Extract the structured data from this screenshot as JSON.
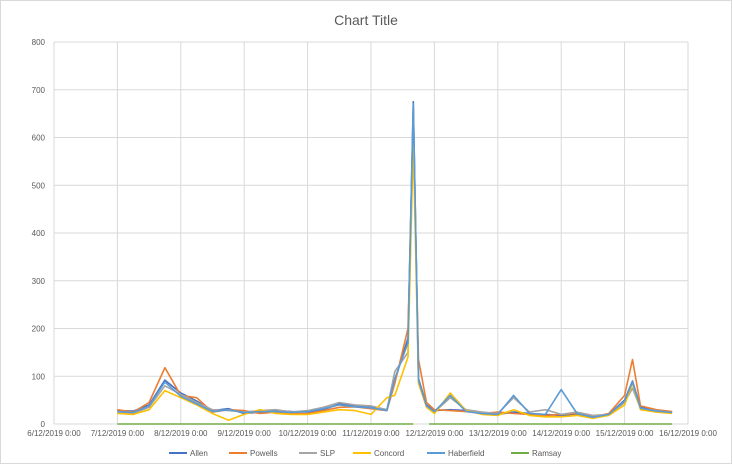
{
  "chart_data": {
    "type": "line",
    "title": "Chart Title",
    "xlabel": "",
    "ylabel": "",
    "ylim": [
      0,
      800
    ],
    "yticks": [
      0,
      100,
      200,
      300,
      400,
      500,
      600,
      700,
      800
    ],
    "xlim": [
      "6/12/2019 0:00",
      "16/12/2019 0:00"
    ],
    "x_tick_labels": [
      "6/12/2019 0:00",
      "7/12/2019 0:00",
      "8/12/2019 0:00",
      "9/12/2019 0:00",
      "10/12/2019 0:00",
      "11/12/2019 0:00",
      "12/12/2019 0:00",
      "13/12/2019 0:00",
      "14/12/2019 0:00",
      "15/12/2019 0:00",
      "16/12/2019 0:00"
    ],
    "grid": "vertical and horizontal",
    "legend_position": "bottom",
    "x_unit": "days",
    "series": [
      {
        "name": "Allen",
        "color": "#4472c4",
        "points": [
          [
            "7/12/2019 0:00",
            28
          ],
          [
            "7/12/2019 6:00",
            27
          ],
          [
            "7/12/2019 12:00",
            40
          ],
          [
            "7/12/2019 18:00",
            92
          ],
          [
            "8/12/2019 0:00",
            65
          ],
          [
            "8/12/2019 6:00",
            48
          ],
          [
            "8/12/2019 12:00",
            28
          ],
          [
            "8/12/2019 18:00",
            32
          ],
          [
            "9/12/2019 0:00",
            22
          ],
          [
            "9/12/2019 6:00",
            25
          ],
          [
            "9/12/2019 12:00",
            28
          ],
          [
            "9/12/2019 18:00",
            26
          ],
          [
            "10/12/2019 0:00",
            25
          ],
          [
            "10/12/2019 6:00",
            30
          ],
          [
            "10/12/2019 12:00",
            42
          ],
          [
            "10/12/2019 18:00",
            38
          ],
          [
            "11/12/2019 0:00",
            35
          ],
          [
            "11/12/2019 6:00",
            30
          ],
          [
            "11/12/2019 9:00",
            90
          ],
          [
            "11/12/2019 14:00",
            180
          ],
          [
            "11/12/2019 16:00",
            675
          ],
          [
            "11/12/2019 18:00",
            95
          ],
          [
            "11/12/2019 21:00",
            40
          ],
          [
            "12/12/2019 0:00",
            28
          ],
          [
            "12/12/2019 6:00",
            30
          ],
          [
            "12/12/2019 12:00",
            28
          ],
          [
            "12/12/2019 18:00",
            22
          ],
          [
            "13/12/2019 0:00",
            20
          ],
          [
            "13/12/2019 6:00",
            25
          ],
          [
            "13/12/2019 12:00",
            22
          ],
          [
            "13/12/2019 18:00",
            20
          ],
          [
            "14/12/2019 0:00",
            18
          ],
          [
            "14/12/2019 6:00",
            20
          ],
          [
            "14/12/2019 12:00",
            15
          ],
          [
            "14/12/2019 18:00",
            20
          ],
          [
            "15/12/2019 0:00",
            50
          ],
          [
            "15/12/2019 3:00",
            90
          ],
          [
            "15/12/2019 6:00",
            35
          ],
          [
            "15/12/2019 12:00",
            28
          ],
          [
            "15/12/2019 18:00",
            25
          ]
        ]
      },
      {
        "name": "Powells",
        "color": "#ed7d31",
        "points": [
          [
            "7/12/2019 0:00",
            30
          ],
          [
            "7/12/2019 6:00",
            25
          ],
          [
            "7/12/2019 12:00",
            45
          ],
          [
            "7/12/2019 18:00",
            118
          ],
          [
            "8/12/2019 0:00",
            60
          ],
          [
            "8/12/2019 6:00",
            55
          ],
          [
            "8/12/2019 12:00",
            25
          ],
          [
            "8/12/2019 18:00",
            30
          ],
          [
            "9/12/2019 0:00",
            28
          ],
          [
            "9/12/2019 6:00",
            22
          ],
          [
            "9/12/2019 12:00",
            25
          ],
          [
            "9/12/2019 18:00",
            22
          ],
          [
            "10/12/2019 0:00",
            22
          ],
          [
            "10/12/2019 6:00",
            28
          ],
          [
            "10/12/2019 12:00",
            35
          ],
          [
            "10/12/2019 18:00",
            36
          ],
          [
            "11/12/2019 0:00",
            32
          ],
          [
            "11/12/2019 6:00",
            28
          ],
          [
            "11/12/2019 9:00",
            85
          ],
          [
            "11/12/2019 14:00",
            200
          ],
          [
            "11/12/2019 16:00",
            620
          ],
          [
            "11/12/2019 18:00",
            135
          ],
          [
            "11/12/2019 21:00",
            45
          ],
          [
            "12/12/2019 0:00",
            30
          ],
          [
            "12/12/2019 6:00",
            28
          ],
          [
            "12/12/2019 12:00",
            26
          ],
          [
            "12/12/2019 18:00",
            22
          ],
          [
            "13/12/2019 0:00",
            25
          ],
          [
            "13/12/2019 6:00",
            22
          ],
          [
            "13/12/2019 12:00",
            20
          ],
          [
            "13/12/2019 18:00",
            18
          ],
          [
            "14/12/2019 0:00",
            20
          ],
          [
            "14/12/2019 6:00",
            22
          ],
          [
            "14/12/2019 12:00",
            15
          ],
          [
            "14/12/2019 18:00",
            22
          ],
          [
            "15/12/2019 0:00",
            60
          ],
          [
            "15/12/2019 3:00",
            135
          ],
          [
            "15/12/2019 6:00",
            38
          ],
          [
            "15/12/2019 12:00",
            30
          ],
          [
            "15/12/2019 18:00",
            26
          ]
        ]
      },
      {
        "name": "SLP",
        "color": "#a5a5a5",
        "points": [
          [
            "7/12/2019 0:00",
            25
          ],
          [
            "7/12/2019 6:00",
            22
          ],
          [
            "7/12/2019 12:00",
            35
          ],
          [
            "7/12/2019 18:00",
            80
          ],
          [
            "8/12/2019 0:00",
            62
          ],
          [
            "8/12/2019 6:00",
            45
          ],
          [
            "8/12/2019 12:00",
            30
          ],
          [
            "8/12/2019 18:00",
            28
          ],
          [
            "9/12/2019 0:00",
            25
          ],
          [
            "9/12/2019 6:00",
            28
          ],
          [
            "9/12/2019 12:00",
            30
          ],
          [
            "9/12/2019 18:00",
            25
          ],
          [
            "10/12/2019 0:00",
            28
          ],
          [
            "10/12/2019 6:00",
            35
          ],
          [
            "10/12/2019 12:00",
            45
          ],
          [
            "10/12/2019 18:00",
            40
          ],
          [
            "11/12/2019 0:00",
            38
          ],
          [
            "11/12/2019 6:00",
            30
          ],
          [
            "11/12/2019 9:00",
            110
          ],
          [
            "11/12/2019 14:00",
            150
          ],
          [
            "11/12/2019 16:00",
            660
          ],
          [
            "11/12/2019 18:00",
            90
          ],
          [
            "11/12/2019 21:00",
            38
          ],
          [
            "12/12/2019 0:00",
            25
          ],
          [
            "12/12/2019 6:00",
            55
          ],
          [
            "12/12/2019 12:00",
            30
          ],
          [
            "12/12/2019 18:00",
            25
          ],
          [
            "13/12/2019 0:00",
            22
          ],
          [
            "13/12/2019 6:00",
            55
          ],
          [
            "13/12/2019 12:00",
            25
          ],
          [
            "13/12/2019 18:00",
            30
          ],
          [
            "14/12/2019 0:00",
            20
          ],
          [
            "14/12/2019 6:00",
            25
          ],
          [
            "14/12/2019 12:00",
            18
          ],
          [
            "14/12/2019 18:00",
            20
          ],
          [
            "15/12/2019 0:00",
            45
          ],
          [
            "15/12/2019 3:00",
            75
          ],
          [
            "15/12/2019 6:00",
            32
          ],
          [
            "15/12/2019 12:00",
            28
          ],
          [
            "15/12/2019 18:00",
            24
          ]
        ]
      },
      {
        "name": "Concord",
        "color": "#ffc000",
        "points": [
          [
            "7/12/2019 0:00",
            22
          ],
          [
            "7/12/2019 6:00",
            20
          ],
          [
            "7/12/2019 12:00",
            30
          ],
          [
            "7/12/2019 18:00",
            70
          ],
          [
            "8/12/2019 0:00",
            55
          ],
          [
            "8/12/2019 6:00",
            40
          ],
          [
            "8/12/2019 12:00",
            22
          ],
          [
            "8/12/2019 18:00",
            8
          ],
          [
            "9/12/2019 0:00",
            20
          ],
          [
            "9/12/2019 6:00",
            30
          ],
          [
            "9/12/2019 12:00",
            22
          ],
          [
            "9/12/2019 18:00",
            20
          ],
          [
            "10/12/2019 0:00",
            20
          ],
          [
            "10/12/2019 6:00",
            25
          ],
          [
            "10/12/2019 12:00",
            30
          ],
          [
            "10/12/2019 18:00",
            28
          ],
          [
            "11/12/2019 0:00",
            20
          ],
          [
            "11/12/2019 6:00",
            55
          ],
          [
            "11/12/2019 9:00",
            60
          ],
          [
            "11/12/2019 14:00",
            140
          ],
          [
            "11/12/2019 16:00",
            590
          ],
          [
            "11/12/2019 18:00",
            85
          ],
          [
            "11/12/2019 21:00",
            35
          ],
          [
            "12/12/2019 0:00",
            22
          ],
          [
            "12/12/2019 6:00",
            65
          ],
          [
            "12/12/2019 12:00",
            28
          ],
          [
            "12/12/2019 18:00",
            20
          ],
          [
            "13/12/2019 0:00",
            18
          ],
          [
            "13/12/2019 6:00",
            30
          ],
          [
            "13/12/2019 12:00",
            18
          ],
          [
            "13/12/2019 18:00",
            15
          ],
          [
            "14/12/2019 0:00",
            15
          ],
          [
            "14/12/2019 6:00",
            18
          ],
          [
            "14/12/2019 12:00",
            12
          ],
          [
            "14/12/2019 18:00",
            18
          ],
          [
            "15/12/2019 0:00",
            40
          ],
          [
            "15/12/2019 3:00",
            85
          ],
          [
            "15/12/2019 6:00",
            30
          ],
          [
            "15/12/2019 12:00",
            25
          ],
          [
            "15/12/2019 18:00",
            22
          ]
        ]
      },
      {
        "name": "Haberfield",
        "color": "#5b9bd5",
        "points": [
          [
            "7/12/2019 0:00",
            26
          ],
          [
            "7/12/2019 6:00",
            24
          ],
          [
            "7/12/2019 12:00",
            38
          ],
          [
            "7/12/2019 18:00",
            88
          ],
          [
            "8/12/2019 0:00",
            58
          ],
          [
            "8/12/2019 6:00",
            42
          ],
          [
            "8/12/2019 12:00",
            26
          ],
          [
            "8/12/2019 18:00",
            30
          ],
          [
            "9/12/2019 0:00",
            24
          ],
          [
            "9/12/2019 6:00",
            26
          ],
          [
            "9/12/2019 12:00",
            26
          ],
          [
            "9/12/2019 18:00",
            24
          ],
          [
            "10/12/2019 0:00",
            26
          ],
          [
            "10/12/2019 6:00",
            32
          ],
          [
            "10/12/2019 12:00",
            40
          ],
          [
            "10/12/2019 18:00",
            36
          ],
          [
            "11/12/2019 0:00",
            34
          ],
          [
            "11/12/2019 6:00",
            28
          ],
          [
            "11/12/2019 9:00",
            95
          ],
          [
            "11/12/2019 14:00",
            170
          ],
          [
            "11/12/2019 16:00",
            670
          ],
          [
            "11/12/2019 18:00",
            92
          ],
          [
            "11/12/2019 21:00",
            38
          ],
          [
            "12/12/2019 0:00",
            26
          ],
          [
            "12/12/2019 6:00",
            60
          ],
          [
            "12/12/2019 12:00",
            26
          ],
          [
            "12/12/2019 18:00",
            22
          ],
          [
            "13/12/2019 0:00",
            20
          ],
          [
            "13/12/2019 6:00",
            60
          ],
          [
            "13/12/2019 12:00",
            22
          ],
          [
            "13/12/2019 18:00",
            20
          ],
          [
            "14/12/2019 0:00",
            72
          ],
          [
            "14/12/2019 6:00",
            22
          ],
          [
            "14/12/2019 12:00",
            14
          ],
          [
            "14/12/2019 18:00",
            20
          ],
          [
            "15/12/2019 0:00",
            48
          ],
          [
            "15/12/2019 3:00",
            88
          ],
          [
            "15/12/2019 6:00",
            33
          ],
          [
            "15/12/2019 12:00",
            27
          ],
          [
            "15/12/2019 18:00",
            24
          ]
        ]
      },
      {
        "name": "Ramsay",
        "color": "#70ad47",
        "points": [
          [
            "7/12/2019 0:00",
            0
          ],
          [
            "8/12/2019 0:00",
            0
          ],
          [
            "9/12/2019 0:00",
            0
          ],
          [
            "10/12/2019 0:00",
            0
          ],
          [
            "11/12/2019 0:00",
            0
          ],
          [
            "11/12/2019 16:00",
            0
          ],
          [
            "11/12/2019 19:00",
            null
          ],
          [
            "11/12/2019 22:00",
            0
          ],
          [
            "12/12/2019 0:00",
            0
          ],
          [
            "13/12/2019 0:00",
            0
          ],
          [
            "14/12/2019 0:00",
            0
          ],
          [
            "15/12/2019 0:00",
            0
          ],
          [
            "15/12/2019 18:00",
            0
          ]
        ]
      }
    ]
  }
}
